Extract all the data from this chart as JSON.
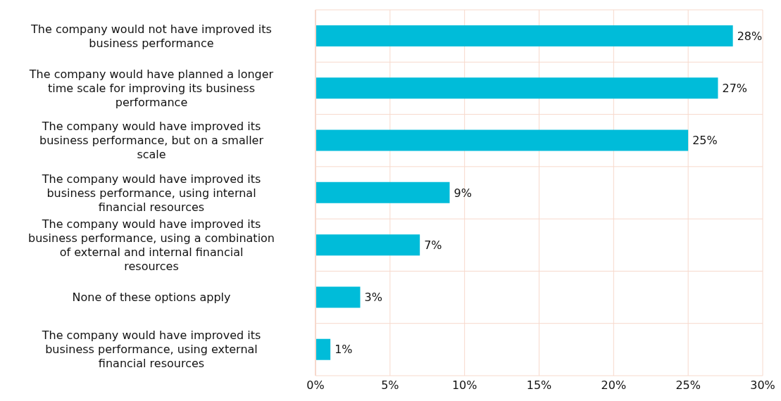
{
  "chart_data": {
    "type": "bar",
    "orientation": "horizontal",
    "categories": [
      "The company would not have improved its business performance",
      "The company would have planned a longer time scale for improving its business performance",
      "The company would have improved its business performance, but on a smaller scale",
      "The company would have improved its business performance, using internal financial resources",
      "The company would have improved its business performance, using a combination of external and internal financial resources",
      "None of these options apply",
      "The company would have improved its business performance, using external financial resources"
    ],
    "values": [
      28,
      27,
      25,
      9,
      7,
      3,
      1
    ],
    "color": "#00bcd9",
    "xlim": [
      0,
      30
    ],
    "xticks": [
      {
        "value": 0,
        "label": "0%"
      },
      {
        "value": 5,
        "label": "5%"
      },
      {
        "value": 10,
        "label": "10%"
      },
      {
        "value": 15,
        "label": "15%"
      },
      {
        "value": 20,
        "label": "20%"
      },
      {
        "value": 25,
        "label": "25%"
      },
      {
        "value": 30,
        "label": "30%"
      }
    ],
    "value_labels": [
      "28%",
      "27%",
      "25%",
      "9%",
      "7%",
      "3%",
      "1%"
    ],
    "grid": true
  }
}
